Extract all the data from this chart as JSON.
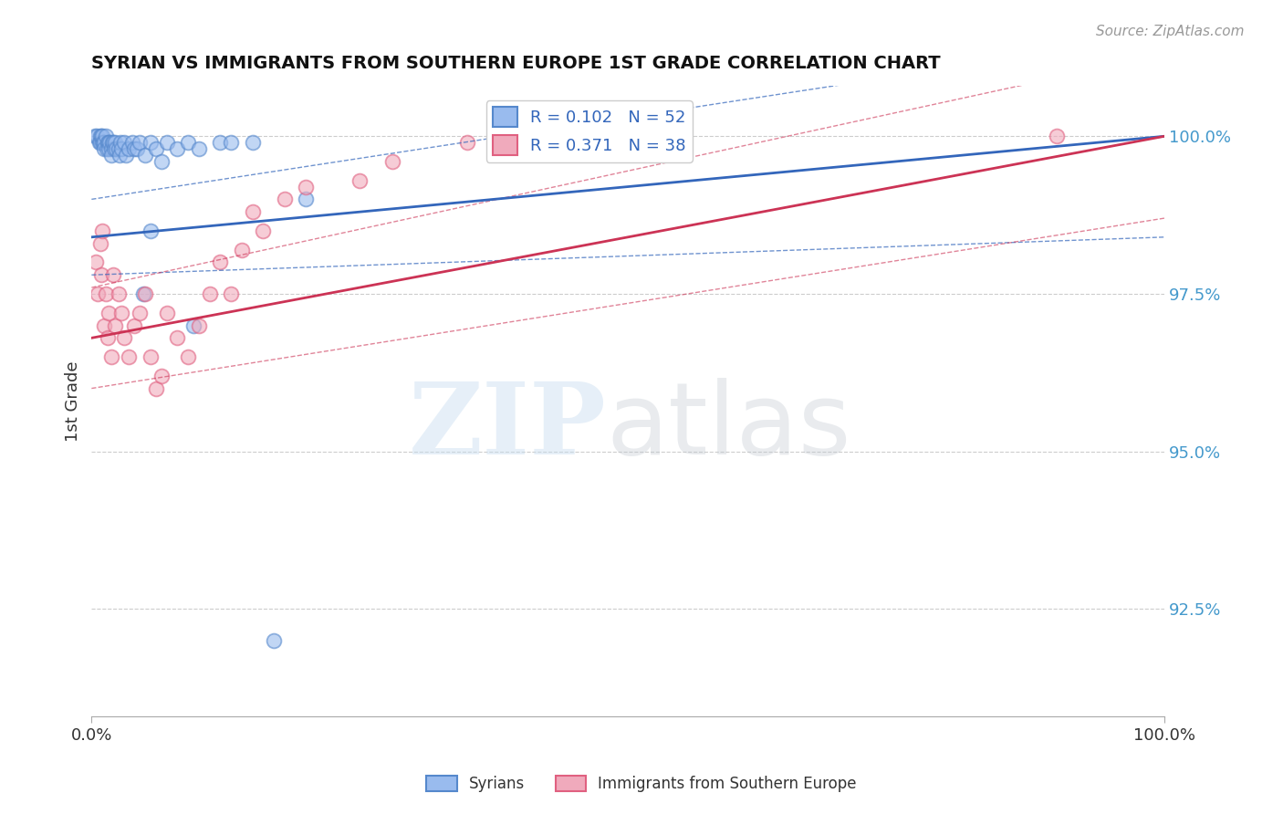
{
  "title": "SYRIAN VS IMMIGRANTS FROM SOUTHERN EUROPE 1ST GRADE CORRELATION CHART",
  "source_text": "Source: ZipAtlas.com",
  "ylabel": "1st Grade",
  "xlim": [
    0.0,
    1.0
  ],
  "ylim": [
    0.908,
    1.008
  ],
  "yticks": [
    0.925,
    0.95,
    0.975,
    1.0
  ],
  "ytick_labels": [
    "92.5%",
    "95.0%",
    "97.5%",
    "100.0%"
  ],
  "xtick_labels": [
    "0.0%",
    "100.0%"
  ],
  "group1_color": "#5588cc",
  "group2_color": "#e06080",
  "group1_fill": "#99bbee",
  "group2_fill": "#f0aabc",
  "trend1_color": "#3366bb",
  "trend2_color": "#cc3355",
  "grid_color": "#cccccc",
  "background_color": "#ffffff",
  "syrians_x": [
    0.003,
    0.005,
    0.007,
    0.008,
    0.008,
    0.009,
    0.01,
    0.01,
    0.011,
    0.012,
    0.012,
    0.013,
    0.014,
    0.015,
    0.016,
    0.016,
    0.017,
    0.018,
    0.018,
    0.019,
    0.02,
    0.021,
    0.022,
    0.023,
    0.025,
    0.026,
    0.027,
    0.028,
    0.03,
    0.032,
    0.035,
    0.038,
    0.04,
    0.042,
    0.045,
    0.05,
    0.055,
    0.06,
    0.065,
    0.07,
    0.08,
    0.09,
    0.1,
    0.12,
    0.15,
    0.2,
    0.4,
    0.095,
    0.048,
    0.055,
    0.17,
    0.13
  ],
  "syrians_y": [
    1.0,
    1.0,
    0.999,
    1.0,
    0.999,
    1.0,
    0.999,
    1.0,
    0.999,
    0.999,
    0.998,
    1.0,
    0.998,
    0.999,
    0.999,
    0.998,
    0.999,
    0.998,
    0.997,
    0.999,
    0.999,
    0.998,
    0.999,
    0.998,
    0.998,
    0.997,
    0.999,
    0.998,
    0.999,
    0.997,
    0.998,
    0.999,
    0.998,
    0.998,
    0.999,
    0.997,
    0.999,
    0.998,
    0.996,
    0.999,
    0.998,
    0.999,
    0.998,
    0.999,
    0.999,
    0.99,
    0.999,
    0.97,
    0.975,
    0.985,
    0.92,
    0.999
  ],
  "southern_x": [
    0.004,
    0.006,
    0.008,
    0.009,
    0.01,
    0.012,
    0.013,
    0.015,
    0.016,
    0.018,
    0.02,
    0.022,
    0.025,
    0.028,
    0.03,
    0.035,
    0.04,
    0.045,
    0.05,
    0.055,
    0.06,
    0.065,
    0.07,
    0.08,
    0.09,
    0.1,
    0.11,
    0.12,
    0.13,
    0.14,
    0.15,
    0.16,
    0.18,
    0.2,
    0.25,
    0.28,
    0.35,
    0.9
  ],
  "southern_y": [
    0.98,
    0.975,
    0.983,
    0.978,
    0.985,
    0.97,
    0.975,
    0.968,
    0.972,
    0.965,
    0.978,
    0.97,
    0.975,
    0.972,
    0.968,
    0.965,
    0.97,
    0.972,
    0.975,
    0.965,
    0.96,
    0.962,
    0.972,
    0.968,
    0.965,
    0.97,
    0.975,
    0.98,
    0.975,
    0.982,
    0.988,
    0.985,
    0.99,
    0.992,
    0.993,
    0.996,
    0.999,
    1.0
  ],
  "trend1_y0": 0.984,
  "trend1_y1": 1.0,
  "trend2_y0": 0.968,
  "trend2_y1": 1.0,
  "legend_label1": "R = 0.102   N = 52",
  "legend_label2": "R = 0.371   N = 38",
  "legend_text_color": "#3366bb",
  "bottom_legend_label1": "Syrians",
  "bottom_legend_label2": "Immigrants from Southern Europe"
}
